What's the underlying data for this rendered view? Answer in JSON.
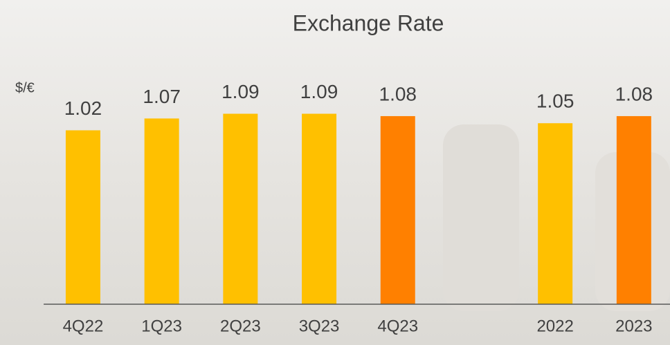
{
  "chart_data": {
    "type": "bar",
    "title": "Exchange Rate",
    "ylabel": "$/€",
    "categories": [
      "4Q22",
      "1Q23",
      "2Q23",
      "3Q23",
      "4Q23",
      null,
      "2022",
      "2023"
    ],
    "values": [
      1.02,
      1.07,
      1.09,
      1.09,
      1.08,
      null,
      1.05,
      1.08
    ],
    "colors": [
      "#ffc000",
      "#ffc000",
      "#ffc000",
      "#ffc000",
      "#ff8000",
      null,
      "#ffc000",
      "#ff8000"
    ],
    "ylim": [
      0.285,
      1.15
    ]
  }
}
